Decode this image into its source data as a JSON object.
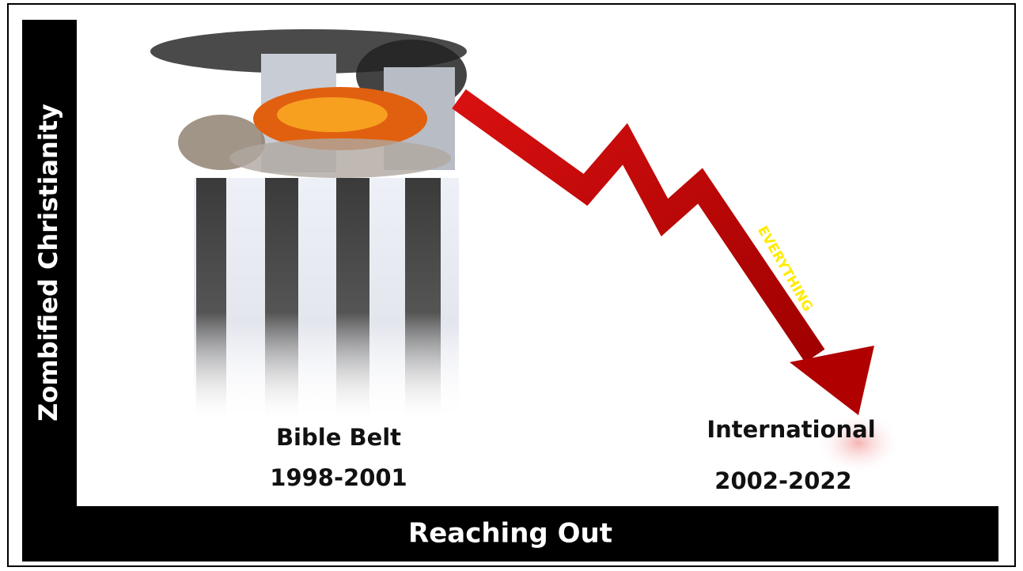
{
  "y_axis_label": "Zombified Christianity",
  "x_axis_label": "Reaching Out",
  "arrow_label": "EVERYTHING",
  "left_label": {
    "title": "Bible Belt",
    "years": "1998-2001"
  },
  "right_label": {
    "title": "International",
    "years": "2002-2022"
  }
}
